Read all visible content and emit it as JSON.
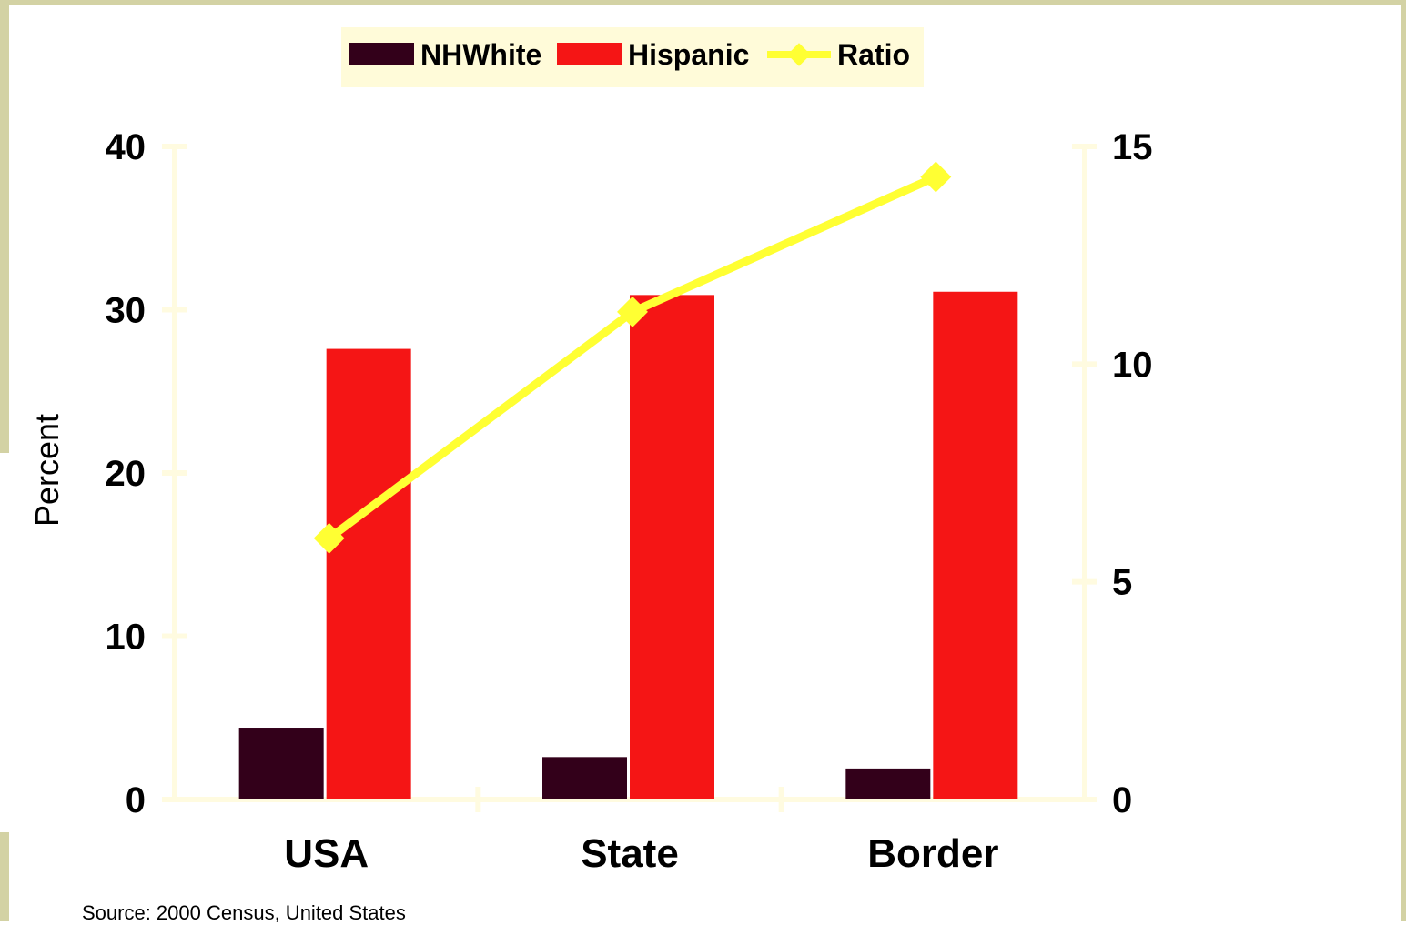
{
  "colors": {
    "frame": "#d3d2a4",
    "nhwhite": "#33001a",
    "hispanic": "#f51515",
    "ratio": "#ffff33",
    "axis": "#fffbe0",
    "legend_bg": "#fffbd9"
  },
  "chart_data": {
    "type": "bar",
    "categories": [
      "USA",
      "State",
      "Border"
    ],
    "series": [
      {
        "name": "NHWhite",
        "axis": "left",
        "type": "bar",
        "values": [
          4.4,
          2.6,
          1.9
        ]
      },
      {
        "name": "Hispanic",
        "axis": "left",
        "type": "bar",
        "values": [
          27.6,
          30.9,
          31.1
        ]
      },
      {
        "name": "Ratio",
        "axis": "right",
        "type": "line",
        "values": [
          6.0,
          11.2,
          14.3
        ]
      }
    ],
    "ylabel": "Percent",
    "ylim": [
      0,
      40
    ],
    "yticks": [
      "0",
      "10",
      "20",
      "30",
      "40"
    ],
    "y2lim": [
      0,
      15
    ],
    "y2ticks": [
      "0",
      "5",
      "10",
      "15"
    ],
    "legend": {
      "position": "top-center",
      "items": [
        "NHWhite",
        "Hispanic",
        "Ratio"
      ]
    },
    "grid": false
  },
  "source": "Source: 2000 Census, United States"
}
